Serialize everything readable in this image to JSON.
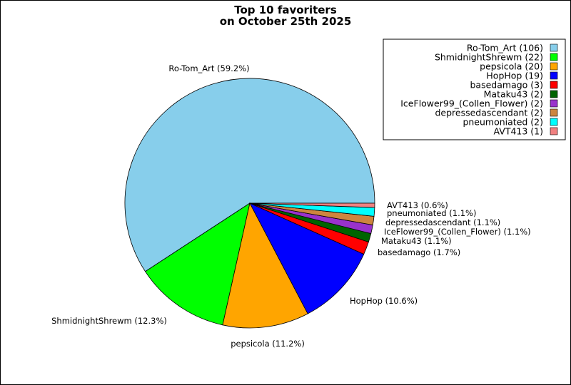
{
  "chart_data": {
    "type": "pie",
    "title_lines": [
      "Top 10 favoriters",
      "on October 25th 2025"
    ],
    "slices": [
      {
        "name": "Ro-Tom_Art",
        "value": 106,
        "color": "#87ceeb",
        "legend": "Ro-Tom_Art (106)",
        "label": "Ro-Tom_Art (59.2%)"
      },
      {
        "name": "ShmidnightShrewm",
        "value": 22,
        "color": "#00ff00",
        "legend": "ShmidnightShrewm (22)",
        "label": "ShmidnightShrewm (12.3%)"
      },
      {
        "name": "pepsicola",
        "value": 20,
        "color": "#ffa500",
        "legend": "pepsicola (20)",
        "label": "pepsicola (11.2%)"
      },
      {
        "name": "HopHop",
        "value": 19,
        "color": "#0000ff",
        "legend": "HopHop (19)",
        "label": "HopHop (10.6%)"
      },
      {
        "name": "basedamago",
        "value": 3,
        "color": "#ff0000",
        "legend": "basedamago (3)",
        "label": "basedamago (1.7%)"
      },
      {
        "name": "Mataku43",
        "value": 2,
        "color": "#006400",
        "legend": "Mataku43 (2)",
        "label": "Mataku43 (1.1%)"
      },
      {
        "name": "IceFlower99_(Collen_Flower)",
        "value": 2,
        "color": "#9932cc",
        "legend": "IceFlower99_(Collen_Flower) (2)",
        "label": "IceFlower99_(Collen_Flower) (1.1%)"
      },
      {
        "name": "depressedascendant",
        "value": 2,
        "color": "#cd853f",
        "legend": "depressedascendant (2)",
        "label": "depressedascendant (1.1%)"
      },
      {
        "name": "pneumoniated",
        "value": 2,
        "color": "#00ffff",
        "legend": "pneumoniated (2)",
        "label": "pneumoniated (1.1%)"
      },
      {
        "name": "AVT413",
        "value": 1,
        "color": "#f08080",
        "legend": "AVT413 (1)",
        "label": "AVT413 (0.6%)"
      }
    ],
    "legend_position": "top-right"
  }
}
